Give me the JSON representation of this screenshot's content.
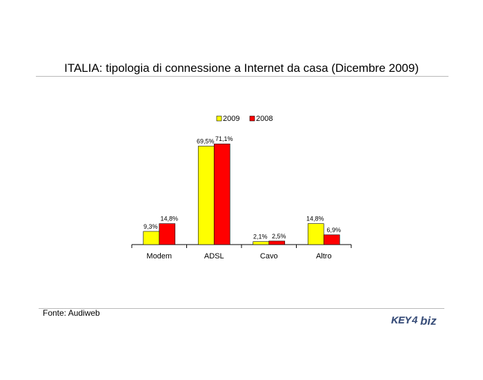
{
  "title": "ITALIA: tipologia di connessione a Internet da casa (Dicembre 2009)",
  "source": "Fonte: Audiweb",
  "logo": {
    "text_key": "KEY",
    "text_biz": "biz",
    "color": "#3a4f7a"
  },
  "chart_data": {
    "type": "bar",
    "categories": [
      "Modem",
      "ADSL",
      "Cavo",
      "Altro"
    ],
    "series": [
      {
        "name": "2009",
        "color": "#ffff00",
        "values": [
          9.3,
          69.5,
          2.1,
          14.8
        ],
        "labels": [
          "9,3%",
          "69,5%",
          "2,1%",
          "14,8%"
        ]
      },
      {
        "name": "2008",
        "color": "#ff0000",
        "values": [
          14.8,
          71.1,
          2.5,
          6.9
        ],
        "labels": [
          "14,8%",
          "71,1%",
          "2,5%",
          "6,9%"
        ]
      }
    ],
    "legend": "top-center",
    "ylim": [
      0,
      80
    ],
    "grid": false,
    "yaxis_visible": false
  }
}
